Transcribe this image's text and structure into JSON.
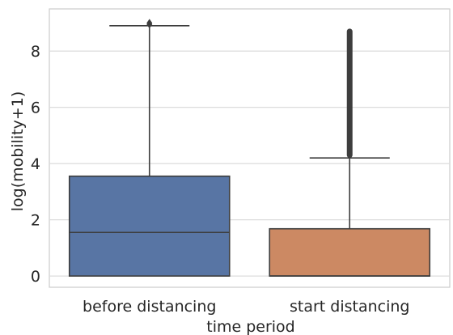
{
  "chart_data": {
    "type": "boxplot",
    "xlabel": "time period",
    "ylabel": "log(mobility+1)",
    "ylim": [
      -0.4,
      9.5
    ],
    "yticks": [
      0,
      2,
      4,
      6,
      8
    ],
    "grid": true,
    "categories": [
      "before distancing",
      "start distancing"
    ],
    "boxes": [
      {
        "category": "before distancing",
        "color": "#5875a4",
        "whisker_low": 0,
        "q1": 0,
        "median": 1.55,
        "q3": 3.55,
        "whisker_high": 8.9,
        "outliers": [
          8.95,
          9.0
        ]
      },
      {
        "category": "start distancing",
        "color": "#cc8963",
        "whisker_low": 0,
        "q1": 0,
        "median": 0,
        "q3": 1.68,
        "whisker_high": 4.2,
        "outlier_range": [
          4.2,
          8.8
        ]
      }
    ]
  }
}
